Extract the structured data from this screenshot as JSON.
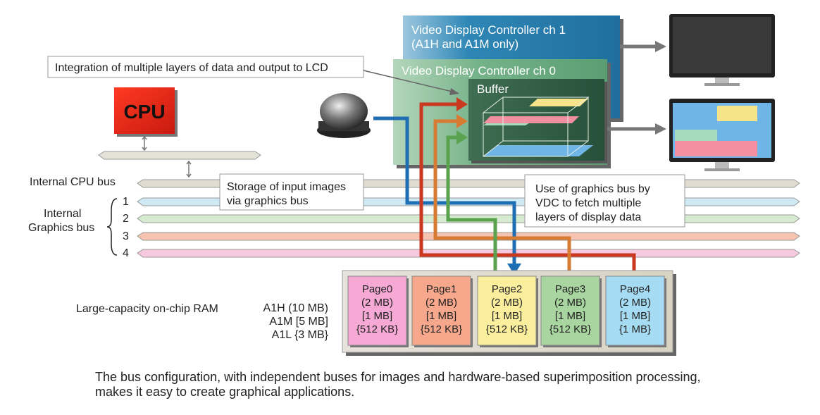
{
  "cpu_label": "CPU",
  "callouts": {
    "integration": "Integration of multiple layers of data and output to LCD",
    "storage_line1": "Storage of input images",
    "storage_line2": "via graphics bus",
    "vdc_bus_line1": "Use of graphics bus by",
    "vdc_bus_line2": "VDC to fetch multiple",
    "vdc_bus_line3": "layers of display data"
  },
  "vdc1": {
    "title": "Video Display Controller ch 1",
    "subtitle": "(A1H and A1M only)"
  },
  "vdc0": {
    "title": "Video Display Controller ch 0",
    "buffer": "Buffer"
  },
  "buses": {
    "cpu_bus": "Internal CPU bus",
    "graphics_line1": "Internal",
    "graphics_line2": "Graphics bus",
    "numbers": [
      "1",
      "2",
      "3",
      "4"
    ],
    "colors": [
      "#cfeaf5",
      "#d6ecd0",
      "#f6c3b0",
      "#f7c9df"
    ]
  },
  "ram": {
    "label": "Large-capacity on-chip RAM",
    "variants": [
      "A1H (10 MB)",
      "A1M [5 MB]",
      "A1L {3 MB}"
    ],
    "pages": [
      {
        "name": "Page0",
        "a1h": "(2 MB)",
        "a1m": "[1 MB]",
        "a1l": "{512 KB}",
        "color": "#f5a9d4"
      },
      {
        "name": "Page1",
        "a1h": "(2 MB)",
        "a1m": "[1 MB]",
        "a1l": "{512 KB}",
        "color": "#f7a88c"
      },
      {
        "name": "Page2",
        "a1h": "(2 MB)",
        "a1m": "[1 MB]",
        "a1l": "{512 KB}",
        "color": "#fbef9e"
      },
      {
        "name": "Page3",
        "a1h": "(2 MB)",
        "a1m": "[1 MB]",
        "a1l": "{512 KB}",
        "color": "#a9d6a0"
      },
      {
        "name": "Page4",
        "a1h": "(2 MB)",
        "a1m": "[1 MB]",
        "a1l": "{1 MB}",
        "color": "#a6dcf3"
      }
    ]
  },
  "caption_line1": "The bus configuration, with independent buses for images and hardware-based superimposition processing,",
  "caption_line2": "makes it easy to create graphical applications.",
  "colors": {
    "cpu": "#e32618",
    "vdc1": "#2b84b4",
    "vdc0": "#6cab80",
    "buffer": "#2f5b42",
    "blue_path": "#1f6db3",
    "red_path": "#c9381f",
    "orange_path": "#d77a32",
    "green_path": "#5aa24e"
  }
}
